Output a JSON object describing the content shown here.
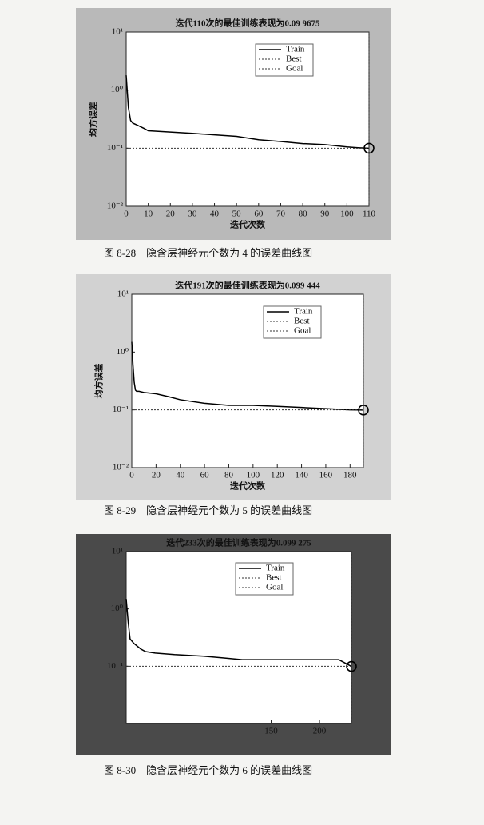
{
  "chart_data": [
    {
      "type": "line",
      "title": "迭代110次的最佳训练表现为0.09 9675",
      "xlabel": "迭代次数",
      "ylabel": "均方误差",
      "caption": "图 8-28　隐含层神经元个数为 4 的误差曲线图",
      "yscale": "log",
      "xlim": [
        0,
        110
      ],
      "xticks": [
        0,
        10,
        20,
        30,
        40,
        50,
        60,
        70,
        80,
        90,
        100,
        110
      ],
      "ylim": [
        0.01,
        10
      ],
      "yticks": [
        {
          "value": 10,
          "label": "10¹"
        },
        {
          "value": 1,
          "label": "10⁰"
        },
        {
          "value": 0.1,
          "label": "10⁻¹"
        },
        {
          "value": 0.01,
          "label": "10⁻²"
        }
      ],
      "series": [
        {
          "name": "Train",
          "color": "#000000",
          "style": "solid",
          "x": [
            0,
            1,
            2,
            3,
            5,
            8,
            10,
            20,
            30,
            40,
            50,
            60,
            70,
            80,
            90,
            100,
            105,
            110
          ],
          "values": [
            1.8,
            0.5,
            0.3,
            0.27,
            0.25,
            0.22,
            0.2,
            0.19,
            0.18,
            0.17,
            0.16,
            0.14,
            0.13,
            0.12,
            0.115,
            0.105,
            0.102,
            0.099675
          ]
        },
        {
          "name": "Best",
          "color": "#333333",
          "style": "dotted",
          "x": [
            110,
            110
          ],
          "values": [
            0.01,
            10
          ]
        },
        {
          "name": "Goal",
          "color": "#333333",
          "style": "dotted",
          "x": [
            0,
            110
          ],
          "values": [
            0.1,
            0.1
          ]
        }
      ],
      "best": {
        "x": 110,
        "value": 0.099675
      }
    },
    {
      "type": "line",
      "title": "迭代191次的最佳训练表现为0.099 444",
      "xlabel": "迭代次数",
      "ylabel": "均方误差",
      "caption": "图 8-29　隐含层神经元个数为 5 的误差曲线图",
      "yscale": "log",
      "xlim": [
        0,
        191
      ],
      "xticks": [
        0,
        20,
        40,
        60,
        80,
        100,
        120,
        140,
        160,
        180
      ],
      "ylim": [
        0.01,
        10
      ],
      "yticks": [
        {
          "value": 10,
          "label": "10¹"
        },
        {
          "value": 1,
          "label": "10⁰"
        },
        {
          "value": 0.1,
          "label": "10⁻¹"
        },
        {
          "value": 0.01,
          "label": "10⁻²"
        }
      ],
      "series": [
        {
          "name": "Train",
          "color": "#000000",
          "style": "solid",
          "x": [
            0,
            1,
            2,
            3,
            4,
            6,
            10,
            20,
            30,
            40,
            60,
            80,
            100,
            120,
            140,
            160,
            180,
            191
          ],
          "values": [
            1.5,
            0.6,
            0.3,
            0.22,
            0.21,
            0.21,
            0.2,
            0.19,
            0.17,
            0.15,
            0.13,
            0.12,
            0.12,
            0.115,
            0.11,
            0.105,
            0.1,
            0.099444
          ]
        },
        {
          "name": "Best",
          "color": "#333333",
          "style": "dotted",
          "x": [
            191,
            191
          ],
          "values": [
            0.01,
            10
          ]
        },
        {
          "name": "Goal",
          "color": "#333333",
          "style": "dotted",
          "x": [
            0,
            191
          ],
          "values": [
            0.1,
            0.1
          ]
        }
      ],
      "best": {
        "x": 191,
        "value": 0.099444
      }
    },
    {
      "type": "line",
      "title": "迭代233次的最佳训练表现为0.099 275",
      "caption": "图 8-30　隐含层神经元个数为 6 的误差曲线图",
      "yscale": "log",
      "xlim": [
        0,
        233
      ],
      "xticks": [
        150,
        200
      ],
      "ylim": [
        0.01,
        10
      ],
      "yticks": [
        {
          "value": 10,
          "label": "10¹"
        },
        {
          "value": 1,
          "label": "10⁰"
        },
        {
          "value": 0.1,
          "label": "10⁻¹"
        }
      ],
      "series": [
        {
          "name": "Train",
          "color": "#000000",
          "style": "solid",
          "x": [
            0,
            2,
            4,
            8,
            15,
            20,
            30,
            50,
            80,
            100,
            120,
            150,
            180,
            200,
            220,
            233
          ],
          "values": [
            1.5,
            0.6,
            0.3,
            0.25,
            0.2,
            0.18,
            0.17,
            0.16,
            0.15,
            0.14,
            0.13,
            0.13,
            0.13,
            0.13,
            0.13,
            0.099275
          ]
        },
        {
          "name": "Best",
          "color": "#333333",
          "style": "dotted",
          "x": [
            233,
            233
          ],
          "values": [
            0.01,
            10
          ]
        },
        {
          "name": "Goal",
          "color": "#333333",
          "style": "dotted",
          "x": [
            0,
            233
          ],
          "values": [
            0.1,
            0.1
          ]
        }
      ],
      "best": {
        "x": 233,
        "value": 0.099275
      }
    }
  ]
}
